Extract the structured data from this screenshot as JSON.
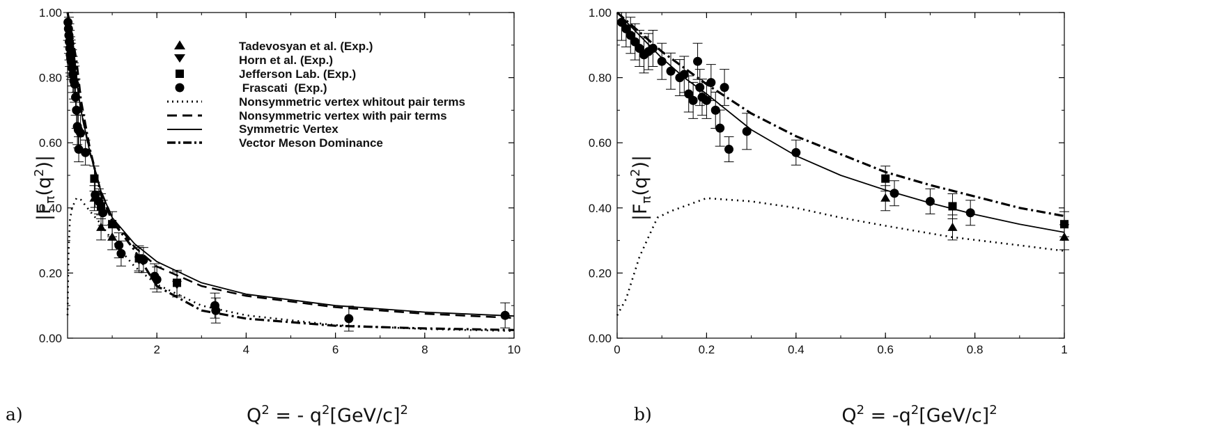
{
  "panel_labels": [
    "a)",
    "b)"
  ],
  "legend": {
    "tadevosyan": "Tadevosyan et al. (Exp.)",
    "horn": "Horn et al. (Exp.)",
    "jlab": "Jefferson Lab. (Exp.)",
    "frascati": " Frascati  (Exp.)",
    "nonsym_nopair": "Nonsymmetric vertex whitout pair terms",
    "nonsym_pair": "Nonsymmetric vertex with pair terms",
    "symmetric": "Symmetric Vertex",
    "vmd": "Vector Meson Dominance"
  },
  "colors": {
    "ink": "#000000",
    "background": "#ffffff"
  },
  "chart_data": [
    {
      "type": "scatter",
      "panel": "a)",
      "xlabel": "Q² = - q²[GeV/c]²",
      "ylabel": "|Fπ(q²)|",
      "xlim": [
        0,
        10
      ],
      "ylim": [
        0,
        1.0
      ],
      "x_ticks": [
        2,
        4,
        6,
        8,
        10
      ],
      "y_ticks": [
        "0.00",
        "0.20",
        "0.40",
        "0.60",
        "0.80",
        "1.00"
      ],
      "legend_position": "top-center",
      "series": [
        {
          "name": "Tadevosyan et al. (Exp.)",
          "marker": "triangle-up",
          "points": [
            [
              0.6,
              0.43
            ],
            [
              0.75,
              0.34
            ],
            [
              1.0,
              0.31
            ]
          ]
        },
        {
          "name": "Horn et al. (Exp.)",
          "marker": "triangle-down",
          "points": [
            [
              1.6,
              0.24
            ],
            [
              2.45,
              0.165
            ]
          ]
        },
        {
          "name": "Jefferson Lab. (Exp.)",
          "marker": "square",
          "points": [
            [
              0.6,
              0.49
            ],
            [
              0.75,
              0.405
            ],
            [
              1.0,
              0.35
            ],
            [
              1.6,
              0.245
            ],
            [
              2.45,
              0.17
            ]
          ]
        },
        {
          "name": " Frascati  (Exp.)",
          "marker": "circle",
          "points": [
            [
              0.01,
              0.97
            ],
            [
              0.02,
              0.95
            ],
            [
              0.03,
              0.93
            ],
            [
              0.04,
              0.91
            ],
            [
              0.05,
              0.89
            ],
            [
              0.06,
              0.87
            ],
            [
              0.07,
              0.86
            ],
            [
              0.08,
              0.85
            ],
            [
              0.1,
              0.83
            ],
            [
              0.12,
              0.81
            ],
            [
              0.14,
              0.79
            ],
            [
              0.16,
              0.78
            ],
            [
              0.18,
              0.74
            ],
            [
              0.2,
              0.7
            ],
            [
              0.22,
              0.65
            ],
            [
              0.24,
              0.64
            ],
            [
              0.25,
              0.58
            ],
            [
              0.29,
              0.63
            ],
            [
              0.4,
              0.57
            ],
            [
              0.62,
              0.44
            ],
            [
              0.7,
              0.42
            ],
            [
              0.79,
              0.385
            ],
            [
              1.15,
              0.285
            ],
            [
              1.2,
              0.26
            ],
            [
              1.7,
              0.24
            ],
            [
              1.95,
              0.19
            ],
            [
              2.0,
              0.18
            ],
            [
              3.3,
              0.1
            ],
            [
              3.32,
              0.085
            ],
            [
              6.3,
              0.06
            ],
            [
              9.8,
              0.07
            ]
          ]
        },
        {
          "name": "Nonsymmetric vertex whitout pair terms",
          "style": "dotted",
          "points": [
            [
              0.0,
              0.07
            ],
            [
              0.02,
              0.25
            ],
            [
              0.05,
              0.36
            ],
            [
              0.1,
              0.4
            ],
            [
              0.2,
              0.43
            ],
            [
              0.3,
              0.425
            ],
            [
              0.5,
              0.39
            ],
            [
              0.75,
              0.35
            ],
            [
              1.0,
              0.3
            ],
            [
              1.5,
              0.22
            ],
            [
              2.0,
              0.165
            ],
            [
              3.0,
              0.1
            ],
            [
              4.0,
              0.07
            ],
            [
              6.0,
              0.04
            ],
            [
              8.0,
              0.028
            ],
            [
              10.0,
              0.022
            ]
          ]
        },
        {
          "name": "Nonsymmetric vertex with pair terms",
          "style": "dashed",
          "points": [
            [
              0.0,
              1.0
            ],
            [
              0.1,
              0.93
            ],
            [
              0.2,
              0.8
            ],
            [
              0.3,
              0.7
            ],
            [
              0.5,
              0.57
            ],
            [
              0.75,
              0.45
            ],
            [
              1.0,
              0.37
            ],
            [
              1.5,
              0.28
            ],
            [
              2.0,
              0.22
            ],
            [
              3.0,
              0.16
            ],
            [
              4.0,
              0.13
            ],
            [
              6.0,
              0.095
            ],
            [
              8.0,
              0.075
            ],
            [
              10.0,
              0.062
            ]
          ]
        },
        {
          "name": "Symmetric Vertex",
          "style": "solid",
          "points": [
            [
              0.0,
              1.0
            ],
            [
              0.1,
              0.91
            ],
            [
              0.2,
              0.79
            ],
            [
              0.3,
              0.7
            ],
            [
              0.5,
              0.57
            ],
            [
              0.75,
              0.45
            ],
            [
              1.0,
              0.37
            ],
            [
              1.5,
              0.29
            ],
            [
              2.0,
              0.235
            ],
            [
              3.0,
              0.17
            ],
            [
              4.0,
              0.135
            ],
            [
              6.0,
              0.1
            ],
            [
              8.0,
              0.08
            ],
            [
              10.0,
              0.068
            ]
          ]
        },
        {
          "name": "Vector Meson Dominance",
          "style": "dash-dot",
          "points": [
            [
              0.0,
              1.0
            ],
            [
              0.1,
              0.93
            ],
            [
              0.2,
              0.85
            ],
            [
              0.3,
              0.73
            ],
            [
              0.5,
              0.58
            ],
            [
              0.75,
              0.44
            ],
            [
              1.0,
              0.36
            ],
            [
              1.5,
              0.27
            ],
            [
              2.0,
              0.16
            ],
            [
              3.0,
              0.085
            ],
            [
              4.0,
              0.06
            ],
            [
              6.0,
              0.038
            ],
            [
              8.0,
              0.03
            ],
            [
              10.0,
              0.025
            ]
          ]
        }
      ]
    },
    {
      "type": "scatter",
      "panel": "b)",
      "xlabel": "Q² = -q²[GeV/c]²",
      "ylabel": "|Fπ(q²)|",
      "xlim": [
        0,
        1
      ],
      "ylim": [
        0,
        1.0
      ],
      "x_ticks": [
        "0",
        "0.2",
        "0.4",
        "0.6",
        "0.8",
        "1"
      ],
      "y_ticks": [
        "0.00",
        "0.20",
        "0.40",
        "0.60",
        "0.80",
        "1.00"
      ],
      "series": [
        {
          "name": "Tadevosyan et al. (Exp.)",
          "marker": "triangle-up",
          "points": [
            [
              0.6,
              0.43
            ],
            [
              0.75,
              0.34
            ],
            [
              1.0,
              0.31
            ]
          ]
        },
        {
          "name": "Jefferson Lab. (Exp.)",
          "marker": "square",
          "points": [
            [
              0.6,
              0.49
            ],
            [
              0.75,
              0.405
            ],
            [
              1.0,
              0.35
            ]
          ]
        },
        {
          "name": " Frascati  (Exp.)",
          "marker": "circle",
          "points": [
            [
              0.01,
              0.97
            ],
            [
              0.02,
              0.95
            ],
            [
              0.03,
              0.93
            ],
            [
              0.04,
              0.91
            ],
            [
              0.05,
              0.89
            ],
            [
              0.06,
              0.87
            ],
            [
              0.07,
              0.88
            ],
            [
              0.08,
              0.89
            ],
            [
              0.1,
              0.85
            ],
            [
              0.12,
              0.82
            ],
            [
              0.14,
              0.8
            ],
            [
              0.15,
              0.81
            ],
            [
              0.16,
              0.75
            ],
            [
              0.17,
              0.73
            ],
            [
              0.18,
              0.85
            ],
            [
              0.185,
              0.77
            ],
            [
              0.19,
              0.74
            ],
            [
              0.2,
              0.73
            ],
            [
              0.21,
              0.785
            ],
            [
              0.22,
              0.7
            ],
            [
              0.23,
              0.645
            ],
            [
              0.24,
              0.77
            ],
            [
              0.25,
              0.58
            ],
            [
              0.29,
              0.635
            ],
            [
              0.4,
              0.57
            ],
            [
              0.62,
              0.445
            ],
            [
              0.7,
              0.42
            ],
            [
              0.79,
              0.385
            ]
          ]
        },
        {
          "name": "Nonsymmetric vertex whitout pair terms",
          "style": "dotted",
          "points": [
            [
              0.0,
              0.07
            ],
            [
              0.02,
              0.12
            ],
            [
              0.05,
              0.25
            ],
            [
              0.09,
              0.37
            ],
            [
              0.12,
              0.39
            ],
            [
              0.2,
              0.43
            ],
            [
              0.3,
              0.42
            ],
            [
              0.4,
              0.4
            ],
            [
              0.5,
              0.37
            ],
            [
              0.6,
              0.345
            ],
            [
              0.75,
              0.31
            ],
            [
              0.9,
              0.285
            ],
            [
              1.0,
              0.268
            ]
          ]
        },
        {
          "name": "Symmetric Vertex",
          "style": "solid",
          "points": [
            [
              0.0,
              1.0
            ],
            [
              0.05,
              0.93
            ],
            [
              0.1,
              0.86
            ],
            [
              0.15,
              0.8
            ],
            [
              0.2,
              0.75
            ],
            [
              0.3,
              0.64
            ],
            [
              0.4,
              0.56
            ],
            [
              0.5,
              0.5
            ],
            [
              0.6,
              0.455
            ],
            [
              0.7,
              0.415
            ],
            [
              0.8,
              0.38
            ],
            [
              0.9,
              0.35
            ],
            [
              1.0,
              0.325
            ]
          ]
        },
        {
          "name": "Vector Meson Dominance",
          "style": "dash-dot",
          "points": [
            [
              0.0,
              1.0
            ],
            [
              0.05,
              0.94
            ],
            [
              0.1,
              0.88
            ],
            [
              0.15,
              0.83
            ],
            [
              0.2,
              0.78
            ],
            [
              0.3,
              0.69
            ],
            [
              0.4,
              0.62
            ],
            [
              0.5,
              0.565
            ],
            [
              0.6,
              0.51
            ],
            [
              0.7,
              0.47
            ],
            [
              0.8,
              0.435
            ],
            [
              0.9,
              0.4
            ],
            [
              1.0,
              0.375
            ]
          ]
        }
      ]
    }
  ]
}
